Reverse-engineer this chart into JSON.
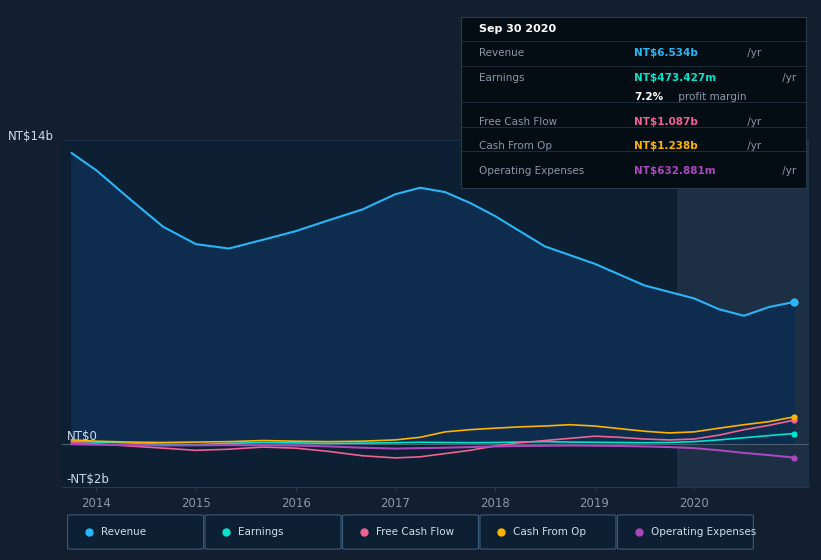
{
  "bg_color": "#131e2e",
  "plot_bg_color": "#0d1f33",
  "highlight_bg_color": "#1c2f45",
  "ylim": [
    -2000000000.0,
    14000000000.0
  ],
  "ytick_labels": [
    "-NT$2b",
    "NT$0",
    "NT$14b"
  ],
  "ytick_values": [
    -2000000000,
    0,
    14000000000
  ],
  "xlim_start": 2013.65,
  "xlim_end": 2021.15,
  "highlight_start": 2019.83,
  "xticks": [
    2014,
    2015,
    2016,
    2017,
    2018,
    2019,
    2020
  ],
  "legend": [
    {
      "label": "Revenue",
      "color": "#29b6f6"
    },
    {
      "label": "Earnings",
      "color": "#00e5cc"
    },
    {
      "label": "Free Cash Flow",
      "color": "#f06292"
    },
    {
      "label": "Cash From Op",
      "color": "#ffb300"
    },
    {
      "label": "Operating Expenses",
      "color": "#ab47bc"
    }
  ],
  "revenue": {
    "color": "#29b6f6",
    "x": [
      2013.75,
      2014.0,
      2014.33,
      2014.67,
      2015.0,
      2015.33,
      2015.67,
      2016.0,
      2016.33,
      2016.67,
      2017.0,
      2017.25,
      2017.5,
      2017.75,
      2018.0,
      2018.25,
      2018.5,
      2018.75,
      2019.0,
      2019.25,
      2019.5,
      2019.75,
      2020.0,
      2020.25,
      2020.5,
      2020.75,
      2021.0
    ],
    "y": [
      13400000000.0,
      12600000000.0,
      11300000000.0,
      10000000000.0,
      9200000000.0,
      9000000000.0,
      9400000000.0,
      9800000000.0,
      10300000000.0,
      10800000000.0,
      11500000000.0,
      11800000000.0,
      11600000000.0,
      11100000000.0,
      10500000000.0,
      9800000000.0,
      9100000000.0,
      8700000000.0,
      8300000000.0,
      7800000000.0,
      7300000000.0,
      7000000000.0,
      6700000000.0,
      6200000000.0,
      5900000000.0,
      6300000000.0,
      6534000000.0
    ]
  },
  "earnings": {
    "color": "#00e5cc",
    "x": [
      2013.75,
      2014.0,
      2014.33,
      2014.67,
      2015.0,
      2015.33,
      2015.67,
      2016.0,
      2016.33,
      2016.67,
      2017.0,
      2017.25,
      2017.5,
      2017.75,
      2018.0,
      2018.25,
      2018.5,
      2018.75,
      2019.0,
      2019.25,
      2019.5,
      2019.75,
      2020.0,
      2020.25,
      2020.5,
      2020.75,
      2021.0
    ],
    "y": [
      120000000.0,
      80000000.0,
      40000000.0,
      -20000000.0,
      -40000000.0,
      20000000.0,
      60000000.0,
      40000000.0,
      20000000.0,
      30000000.0,
      50000000.0,
      70000000.0,
      60000000.0,
      50000000.0,
      60000000.0,
      80000000.0,
      100000000.0,
      80000000.0,
      70000000.0,
      60000000.0,
      50000000.0,
      60000000.0,
      100000000.0,
      180000000.0,
      280000000.0,
      380000000.0,
      473000000.0
    ]
  },
  "free_cash_flow": {
    "color": "#f06292",
    "x": [
      2013.75,
      2014.0,
      2014.33,
      2014.67,
      2015.0,
      2015.33,
      2015.67,
      2016.0,
      2016.33,
      2016.67,
      2017.0,
      2017.25,
      2017.5,
      2017.75,
      2018.0,
      2018.25,
      2018.5,
      2018.75,
      2019.0,
      2019.25,
      2019.5,
      2019.75,
      2020.0,
      2020.25,
      2020.5,
      2020.75,
      2021.0
    ],
    "y": [
      50000000.0,
      0.0,
      -100000000.0,
      -200000000.0,
      -300000000.0,
      -250000000.0,
      -150000000.0,
      -200000000.0,
      -350000000.0,
      -550000000.0,
      -650000000.0,
      -600000000.0,
      -450000000.0,
      -300000000.0,
      -100000000.0,
      50000000.0,
      150000000.0,
      250000000.0,
      350000000.0,
      300000000.0,
      220000000.0,
      180000000.0,
      220000000.0,
      400000000.0,
      650000000.0,
      850000000.0,
      1087000000.0
    ]
  },
  "cash_from_op": {
    "color": "#ffb300",
    "x": [
      2013.75,
      2014.0,
      2014.33,
      2014.67,
      2015.0,
      2015.33,
      2015.67,
      2016.0,
      2016.33,
      2016.67,
      2017.0,
      2017.25,
      2017.5,
      2017.75,
      2018.0,
      2018.25,
      2018.5,
      2018.75,
      2019.0,
      2019.25,
      2019.5,
      2019.75,
      2020.0,
      2020.25,
      2020.5,
      2020.75,
      2021.0
    ],
    "y": [
      180000000.0,
      120000000.0,
      80000000.0,
      60000000.0,
      80000000.0,
      100000000.0,
      150000000.0,
      120000000.0,
      100000000.0,
      120000000.0,
      180000000.0,
      300000000.0,
      550000000.0,
      650000000.0,
      720000000.0,
      780000000.0,
      820000000.0,
      880000000.0,
      820000000.0,
      700000000.0,
      580000000.0,
      500000000.0,
      550000000.0,
      720000000.0,
      880000000.0,
      1020000000.0,
      1238000000.0
    ]
  },
  "op_expenses": {
    "color": "#ab47bc",
    "x": [
      2013.75,
      2014.0,
      2014.33,
      2014.67,
      2015.0,
      2015.33,
      2015.67,
      2016.0,
      2016.33,
      2016.67,
      2017.0,
      2017.25,
      2017.5,
      2017.75,
      2018.0,
      2018.25,
      2018.5,
      2018.75,
      2019.0,
      2019.25,
      2019.5,
      2019.75,
      2020.0,
      2020.25,
      2020.5,
      2020.75,
      2021.0
    ],
    "y": [
      -20000000.0,
      -40000000.0,
      -60000000.0,
      -80000000.0,
      -70000000.0,
      -60000000.0,
      -70000000.0,
      -80000000.0,
      -120000000.0,
      -180000000.0,
      -220000000.0,
      -200000000.0,
      -180000000.0,
      -150000000.0,
      -120000000.0,
      -100000000.0,
      -90000000.0,
      -80000000.0,
      -90000000.0,
      -100000000.0,
      -120000000.0,
      -150000000.0,
      -200000000.0,
      -300000000.0,
      -420000000.0,
      -520000000.0,
      -633000000.0
    ]
  },
  "zero_line_color": "#4a6070",
  "grid_color": "#1e3a52",
  "text_color": "#8899aa",
  "text_color_bright": "#ccddee",
  "info_box_bg": "#050d14",
  "info_box_border": "#2a3a4a",
  "info_revenue_color": "#29b6f6",
  "info_earnings_color": "#00e5cc",
  "info_fcf_color": "#f06292",
  "info_cashop_color": "#ffb300",
  "info_opex_color": "#ab47bc"
}
